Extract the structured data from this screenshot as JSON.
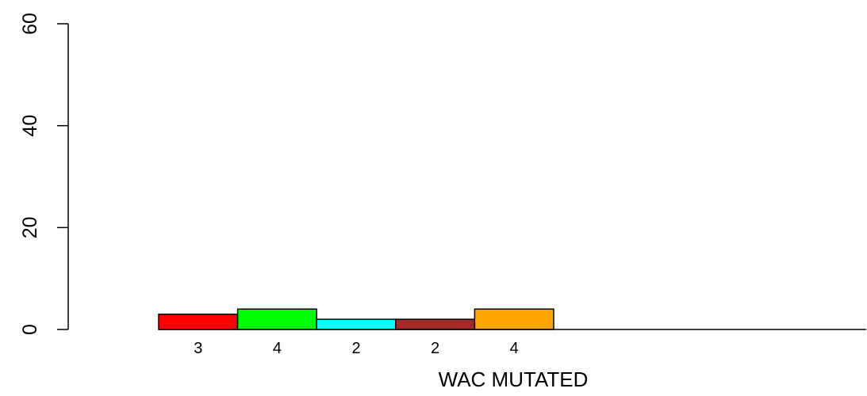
{
  "chart_data": {
    "type": "bar",
    "xlabel": "WAC MUTATED",
    "ylabel": "",
    "ylim": [
      0,
      60
    ],
    "yticks": [
      0,
      20,
      40,
      60
    ],
    "grid": false,
    "categories": [
      "3",
      "4",
      "2",
      "2",
      "4"
    ],
    "values": [
      3,
      4,
      2,
      2,
      4
    ],
    "bar_labels": [
      "3",
      "4",
      "2",
      "2",
      "4"
    ],
    "colors": [
      "#ff0000",
      "#00ff00",
      "#00ffff",
      "#a52a2a",
      "#ffa500"
    ],
    "bar_border_color": "#000000"
  }
}
